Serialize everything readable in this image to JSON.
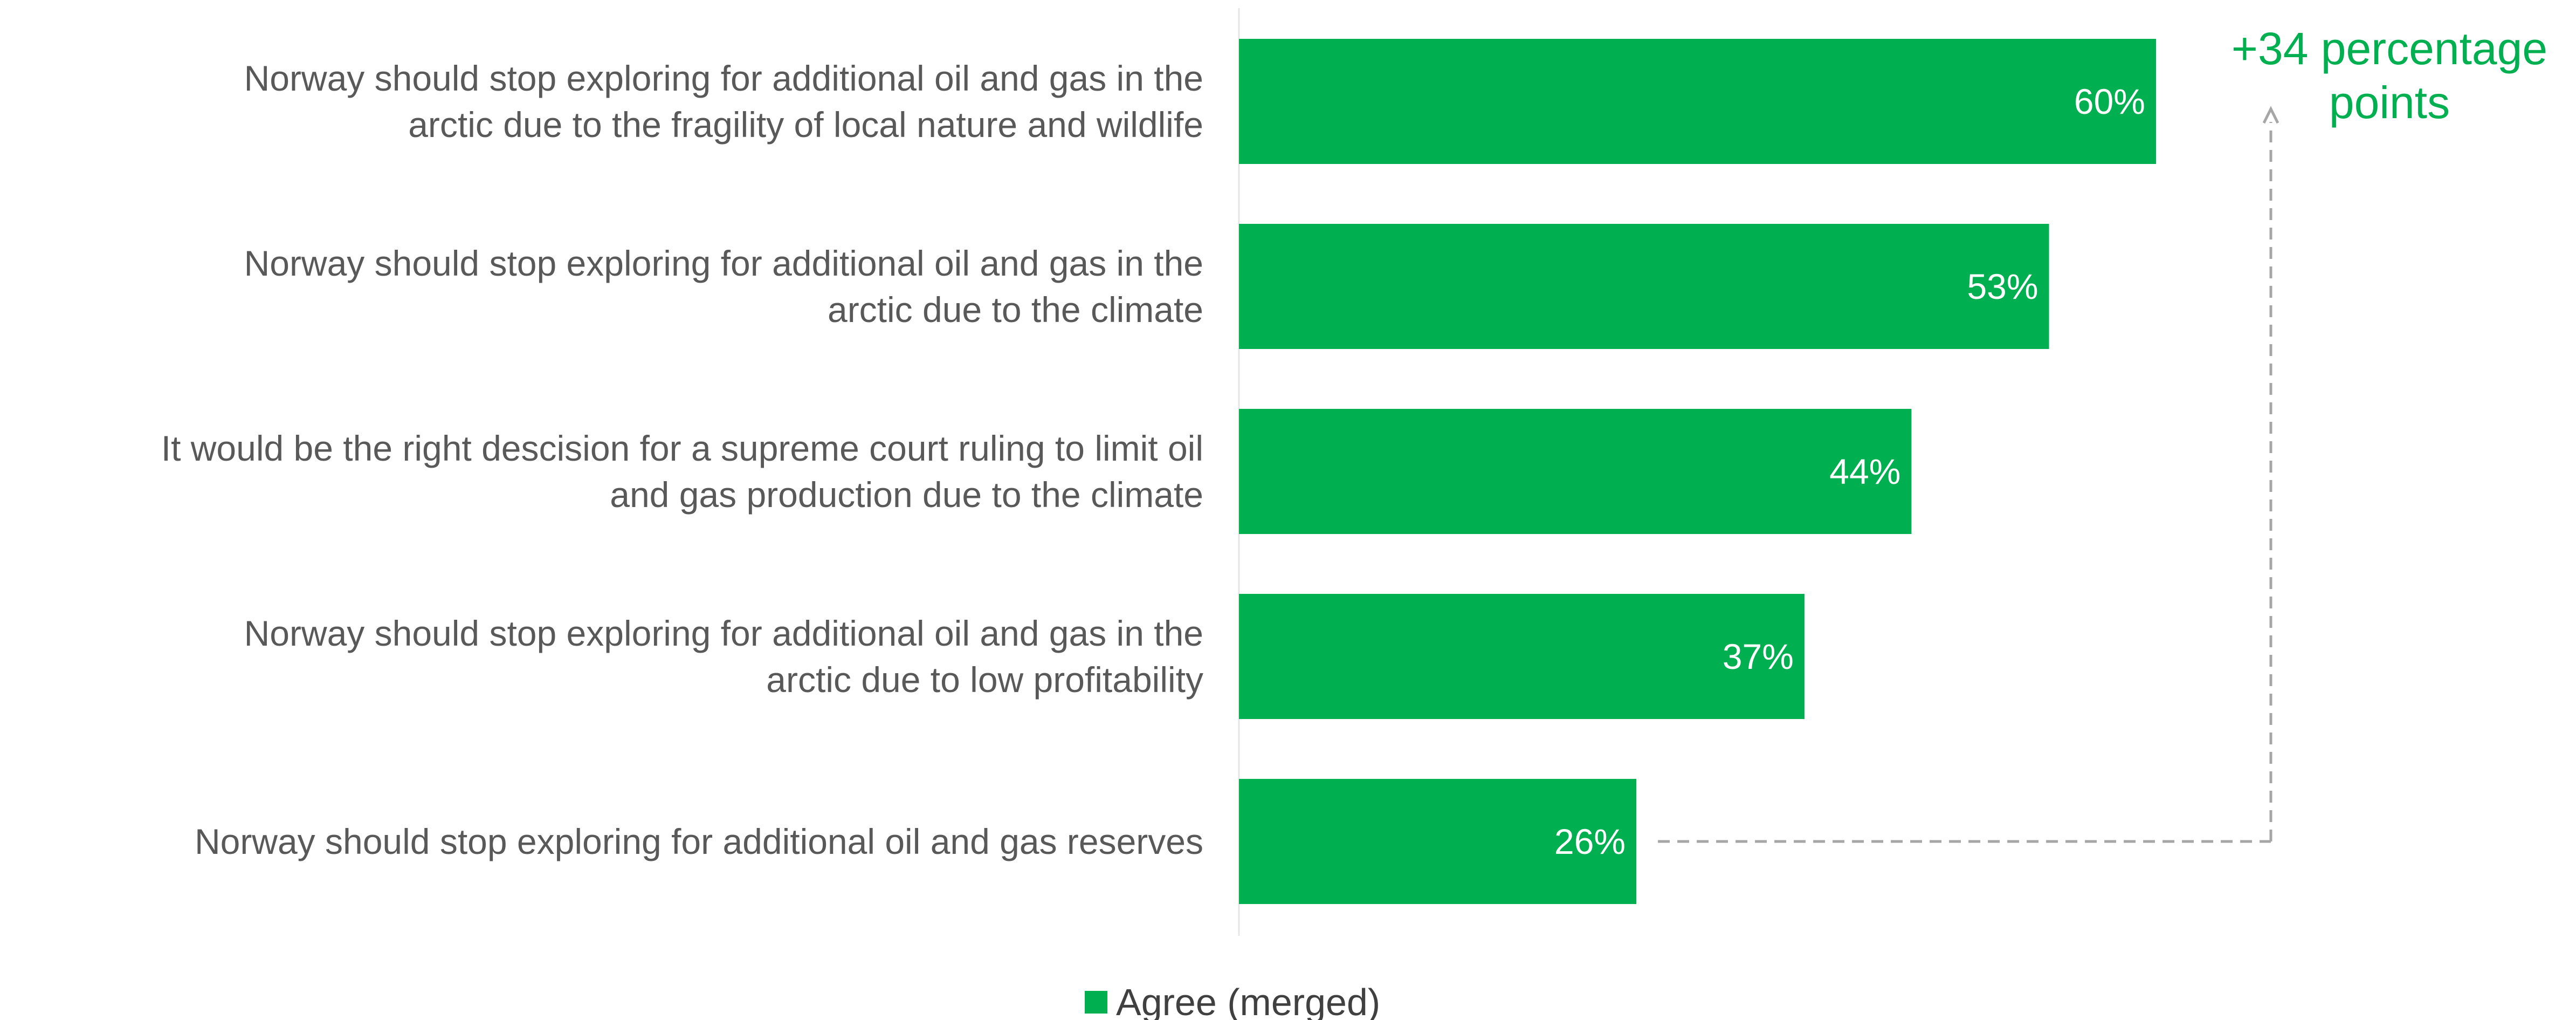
{
  "chart_data": {
    "type": "bar",
    "orientation": "horizontal",
    "categories": [
      [
        "Norway should stop exploring for additional oil and gas in the",
        "arctic due to the fragility of local nature and wildlife"
      ],
      [
        "Norway should stop exploring for additional oil and gas in the",
        "arctic due to the climate"
      ],
      [
        "It would be the right descision for a supreme court ruling to limit oil",
        "and gas production due to the climate"
      ],
      [
        "Norway should stop exploring for additional oil and gas in the",
        "arctic due to low profitability"
      ],
      [
        "Norway should stop exploring for additional oil and gas reserves"
      ]
    ],
    "series": [
      {
        "name": "Agree (merged)",
        "values": [
          60,
          53,
          44,
          37,
          26
        ],
        "labels": [
          "60%",
          "53%",
          "44%",
          "37%",
          "26%"
        ],
        "color": "#00b050"
      }
    ],
    "xlim": [
      0,
      100
    ],
    "grid": false,
    "legend_position": "bottom",
    "annotation": {
      "lines": [
        "+34 percentage",
        "points"
      ],
      "color": "#00b050",
      "connector_color": "#a6a6a6"
    }
  }
}
